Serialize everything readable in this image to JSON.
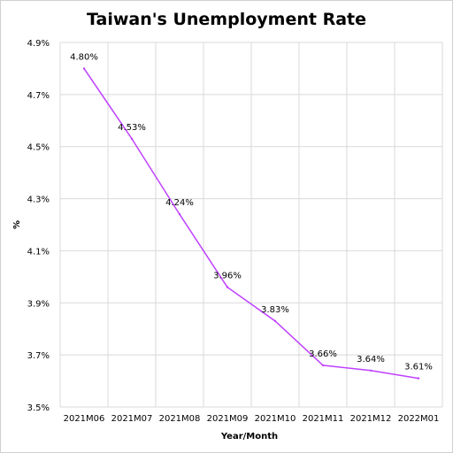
{
  "chart_data": {
    "type": "line",
    "title": "Taiwan's Unemployment Rate",
    "xlabel": "Year/Month",
    "ylabel": "%",
    "categories": [
      "2021M06",
      "2021M07",
      "2021M08",
      "2021M09",
      "2021M10",
      "2021M11",
      "2021M12",
      "2022M01"
    ],
    "series": [
      {
        "values": [
          4.8,
          4.53,
          4.24,
          3.96,
          3.83,
          3.66,
          3.64,
          3.61
        ],
        "data_labels": [
          "4.80%",
          "4.53%",
          "4.24%",
          "3.96%",
          "3.83%",
          "3.66%",
          "3.64%",
          "3.61%"
        ],
        "color": "#bf40ff"
      }
    ],
    "ylim": [
      3.5,
      4.9
    ],
    "yticks": [
      3.5,
      3.7,
      3.9,
      4.1,
      4.3,
      4.5,
      4.7,
      4.9
    ],
    "ytick_labels": [
      "3.5%",
      "3.7%",
      "3.9%",
      "4.1%",
      "4.3%",
      "4.5%",
      "4.7%",
      "4.9%"
    ],
    "grid": true,
    "legend": "none"
  }
}
